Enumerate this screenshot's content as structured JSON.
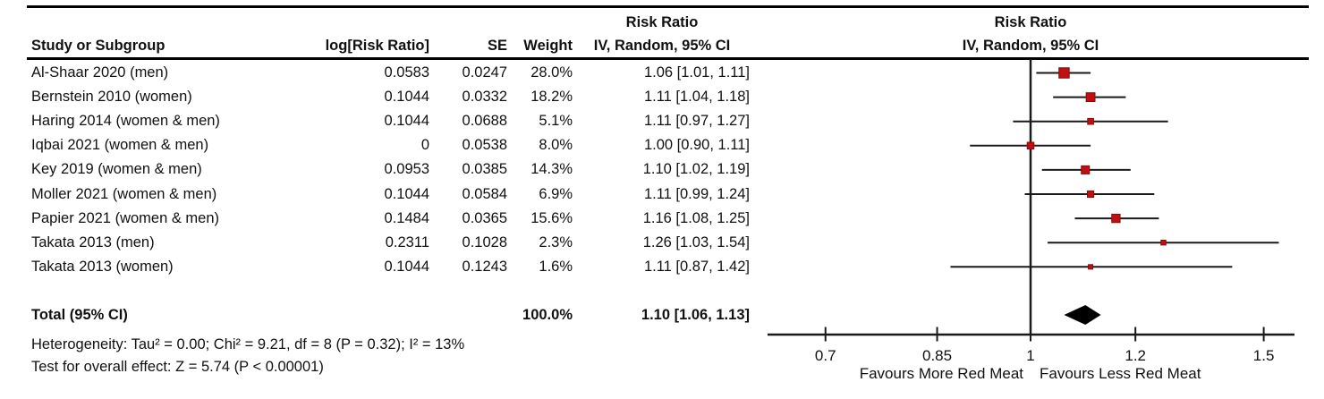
{
  "colors": {
    "marker_fill": "#c00e12",
    "marker_border": "#850b0b",
    "line": "#1a1a1a",
    "diamond": "#000000",
    "text": "#111111"
  },
  "table": {
    "headers": {
      "study": "Study or Subgroup",
      "log_rr": "log[Risk Ratio]",
      "se": "SE",
      "weight": "Weight"
    }
  },
  "chart_data": {
    "type": "forest",
    "effect_header": "Risk Ratio",
    "model_header": "IV, Random, 95% CI",
    "studies": [
      {
        "name": "Al-Shaar 2020 (men)",
        "log_rr": "0.0583",
        "se": "0.0247",
        "weight": "28.0%",
        "weight_pct": 28.0,
        "rr": 1.06,
        "ci_low": 1.01,
        "ci_high": 1.11,
        "ci_text": "1.06 [1.01, 1.11]"
      },
      {
        "name": "Bernstein 2010 (women)",
        "log_rr": "0.1044",
        "se": "0.0332",
        "weight": "18.2%",
        "weight_pct": 18.2,
        "rr": 1.11,
        "ci_low": 1.04,
        "ci_high": 1.18,
        "ci_text": "1.11 [1.04, 1.18]"
      },
      {
        "name": "Haring 2014 (women & men)",
        "log_rr": "0.1044",
        "se": "0.0688",
        "weight": "5.1%",
        "weight_pct": 5.1,
        "rr": 1.11,
        "ci_low": 0.97,
        "ci_high": 1.27,
        "ci_text": "1.11 [0.97, 1.27]"
      },
      {
        "name": "Iqbai 2021 (women & men)",
        "log_rr": "0",
        "se": "0.0538",
        "weight": "8.0%",
        "weight_pct": 8.0,
        "rr": 1.0,
        "ci_low": 0.9,
        "ci_high": 1.11,
        "ci_text": "1.00 [0.90, 1.11]"
      },
      {
        "name": "Key 2019 (women & men)",
        "log_rr": "0.0953",
        "se": "0.0385",
        "weight": "14.3%",
        "weight_pct": 14.3,
        "rr": 1.1,
        "ci_low": 1.02,
        "ci_high": 1.19,
        "ci_text": "1.10 [1.02, 1.19]"
      },
      {
        "name": "Moller 2021 (women & men)",
        "log_rr": "0.1044",
        "se": "0.0584",
        "weight": "6.9%",
        "weight_pct": 6.9,
        "rr": 1.11,
        "ci_low": 0.99,
        "ci_high": 1.24,
        "ci_text": "1.11 [0.99, 1.24]"
      },
      {
        "name": "Papier 2021 (women & men)",
        "log_rr": "0.1484",
        "se": "0.0365",
        "weight": "15.6%",
        "weight_pct": 15.6,
        "rr": 1.16,
        "ci_low": 1.08,
        "ci_high": 1.25,
        "ci_text": "1.16 [1.08, 1.25]"
      },
      {
        "name": "Takata 2013 (men)",
        "log_rr": "0.2311",
        "se": "0.1028",
        "weight": "2.3%",
        "weight_pct": 2.3,
        "rr": 1.26,
        "ci_low": 1.03,
        "ci_high": 1.54,
        "ci_text": "1.26 [1.03, 1.54]"
      },
      {
        "name": "Takata 2013 (women)",
        "log_rr": "0.1044",
        "se": "0.1243",
        "weight": "1.6%",
        "weight_pct": 1.6,
        "rr": 1.11,
        "ci_low": 0.87,
        "ci_high": 1.42,
        "ci_text": "1.11 [0.87, 1.42]"
      }
    ],
    "total": {
      "label": "Total (95% CI)",
      "weight": "100.0%",
      "rr": 1.1,
      "ci_low": 1.06,
      "ci_high": 1.13,
      "ci_text": "1.10 [1.06, 1.13]"
    },
    "heterogeneity": "Heterogeneity: Tau² = 0.00; Chi² = 9.21, df = 8 (P = 0.32); I² = 13%",
    "overall_effect": "Test for overall effect: Z = 5.74 (P < 0.00001)",
    "axis": {
      "scale": "log",
      "ticks": [
        0.7,
        0.85,
        1,
        1.2,
        1.5
      ],
      "tick_labels": [
        "0.7",
        "0.85",
        "1",
        "1.2",
        "1.5"
      ],
      "xmin": 0.63,
      "xmax": 1.58,
      "null_value": 1
    },
    "favours_left": "Favours More Red Meat",
    "favours_right": "Favours Less Red Meat"
  }
}
